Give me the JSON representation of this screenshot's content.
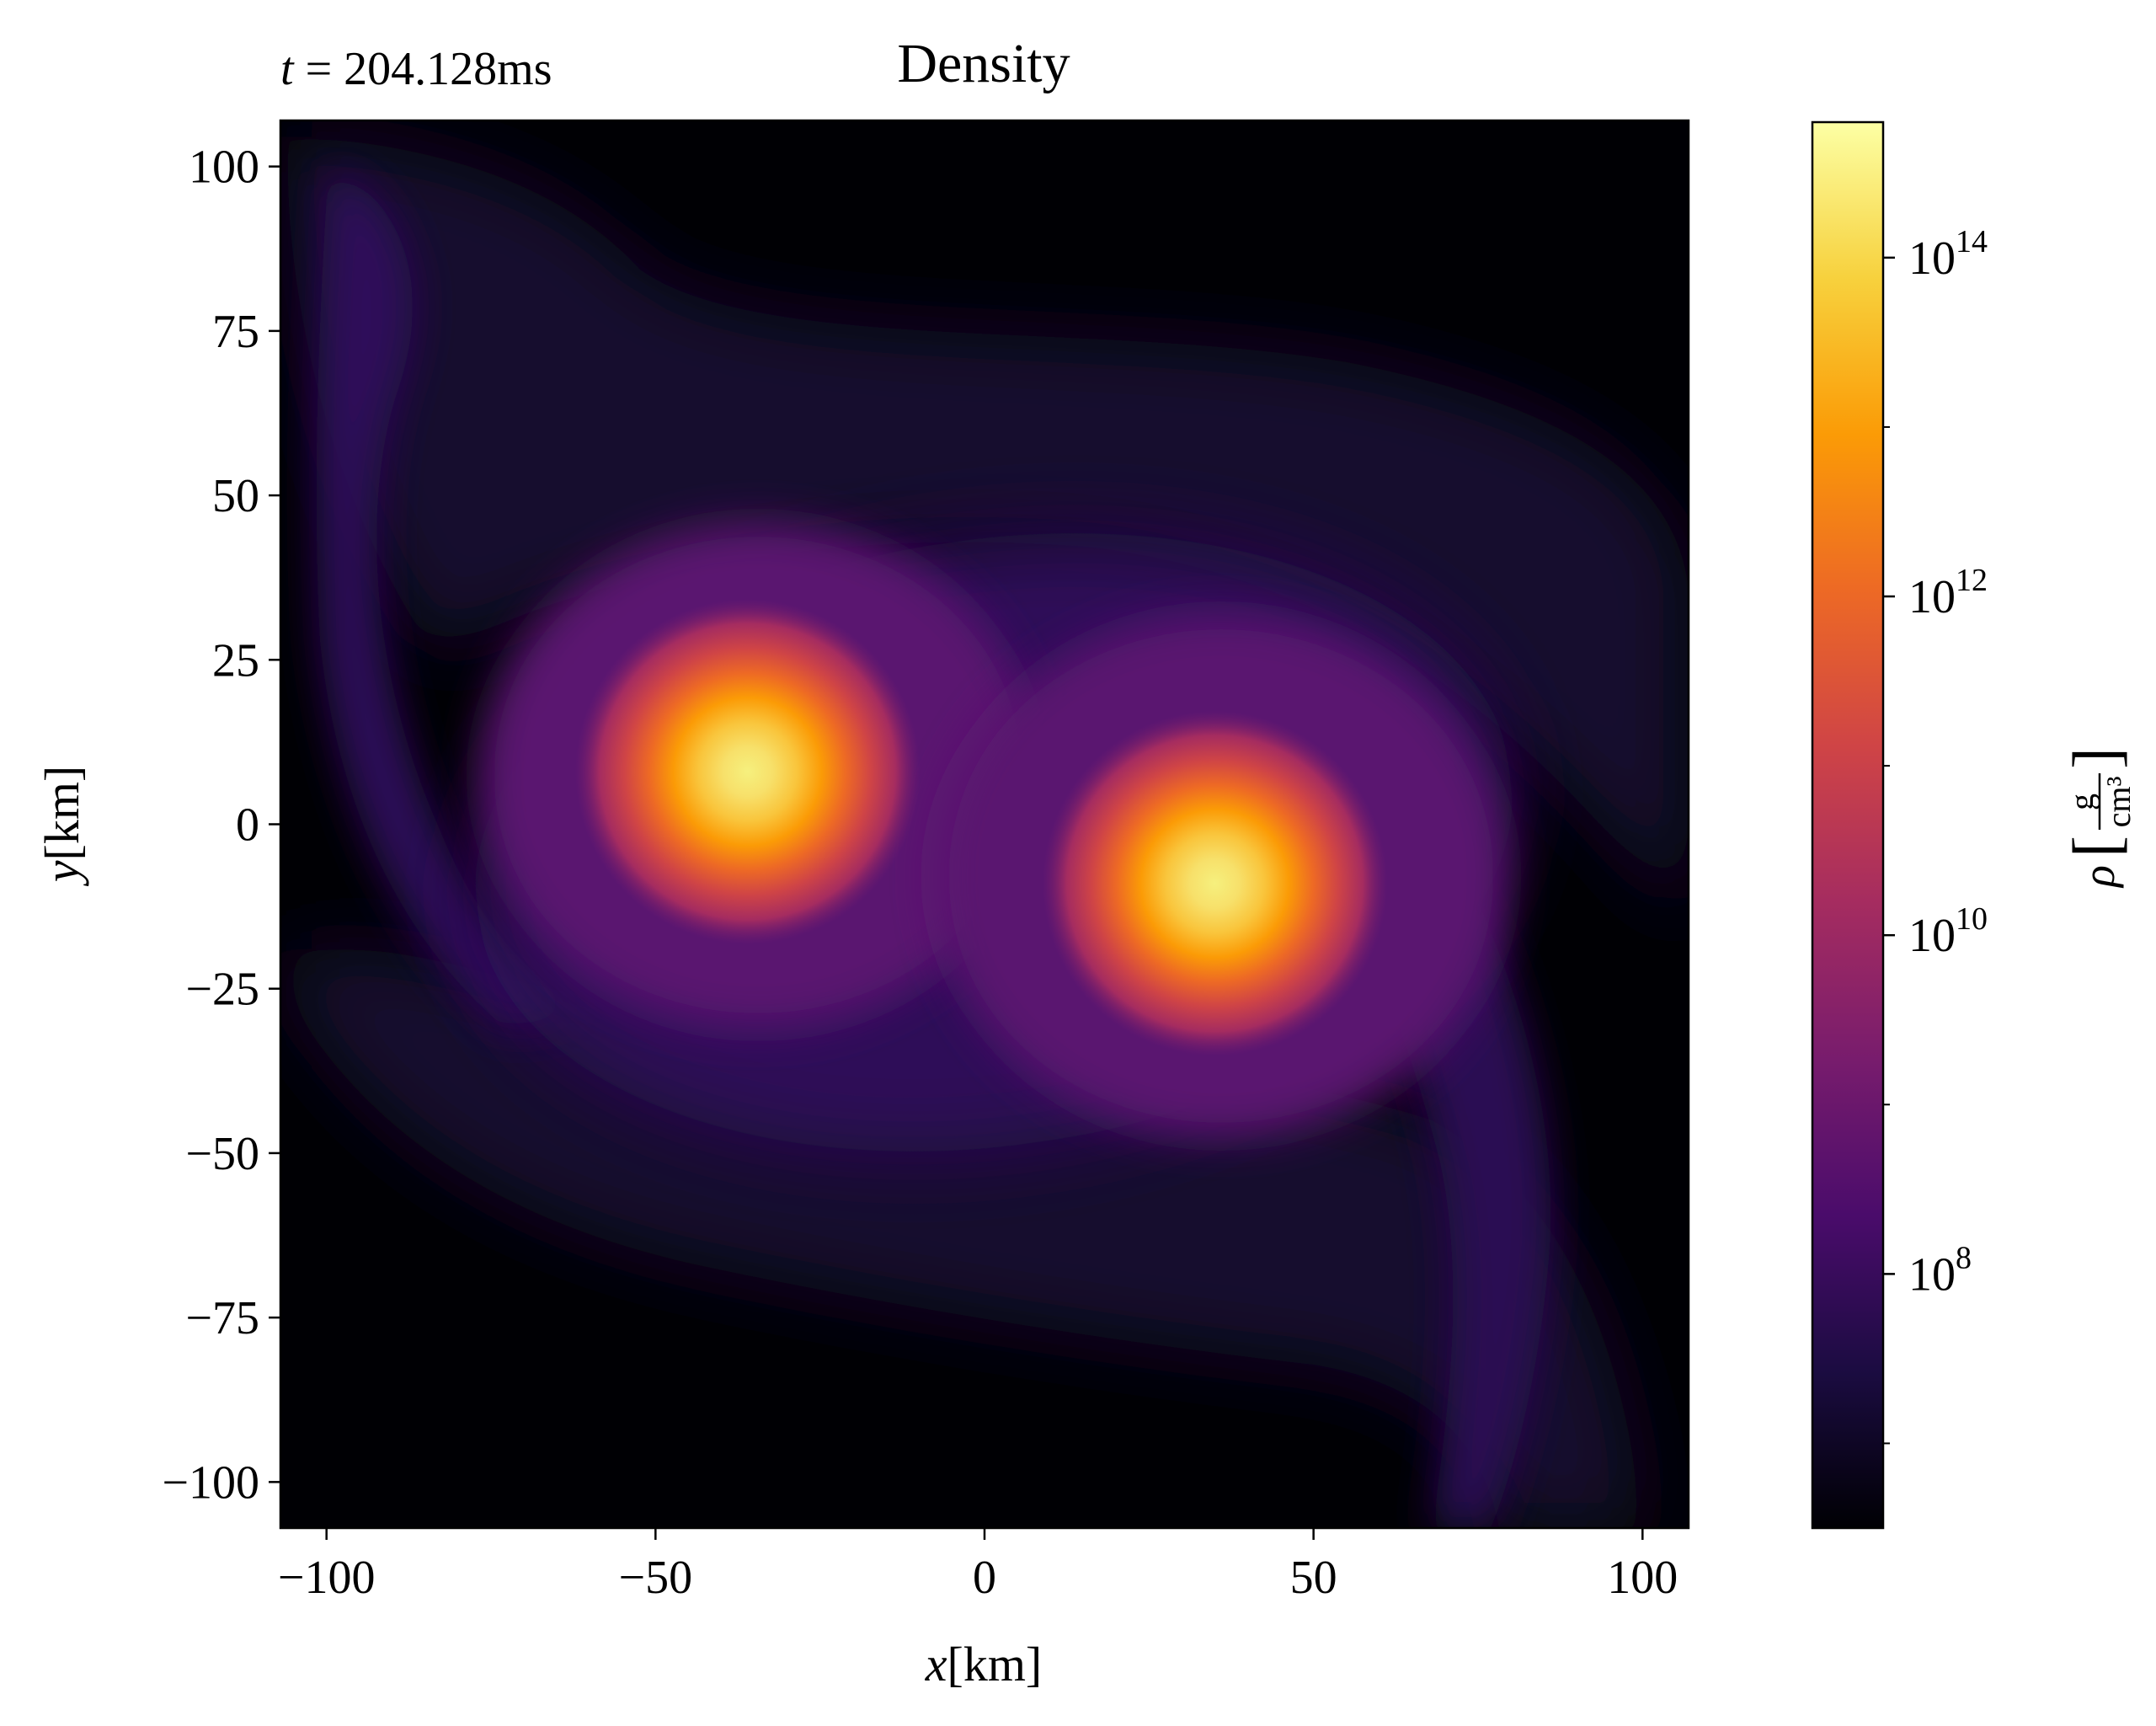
{
  "chart_data": {
    "type": "heatmap",
    "title": "Density",
    "time_label": {
      "var": "t",
      "eq": " = ",
      "value": "204.128ms"
    },
    "xlabel": {
      "var": "x",
      "unit": "[km]"
    },
    "ylabel": {
      "var": "y",
      "unit": "[km]"
    },
    "xlim": [
      -107,
      107
    ],
    "ylim": [
      -107,
      107
    ],
    "xticks": [
      -100,
      -50,
      0,
      50,
      100
    ],
    "xtick_labels": [
      "−100",
      "−50",
      "0",
      "50",
      "100"
    ],
    "yticks": [
      100,
      75,
      50,
      25,
      0,
      -25,
      -50,
      -75,
      -100
    ],
    "ytick_labels": [
      "100",
      "75",
      "50",
      "25",
      "0",
      "−25",
      "−50",
      "−75",
      "−100"
    ],
    "colorbar": {
      "label": {
        "var": "ρ",
        "numerator": "g",
        "denominator": "cm³"
      },
      "scale": "log",
      "log10_range": [
        6.5,
        14.8
      ],
      "ticks_log10": [
        8,
        10,
        12,
        14
      ],
      "tick_labels": [
        {
          "base": "10",
          "exp": "8"
        },
        {
          "base": "10",
          "exp": "10"
        },
        {
          "base": "10",
          "exp": "12"
        },
        {
          "base": "10",
          "exp": "14"
        }
      ],
      "colormap": "inferno",
      "colormap_stops": [
        "#000004",
        "#1b0c41",
        "#4a0c6b",
        "#781c6d",
        "#a52c60",
        "#cf4446",
        "#ed6925",
        "#fb9b06",
        "#f7d13d",
        "#fcffa4"
      ]
    },
    "features": [
      {
        "name": "density-peak-left",
        "x": -36,
        "y": 8,
        "log10_density": 14.7
      },
      {
        "name": "density-peak-right",
        "x": 35,
        "y": -9,
        "log10_density": 14.7
      }
    ],
    "grid": false
  }
}
